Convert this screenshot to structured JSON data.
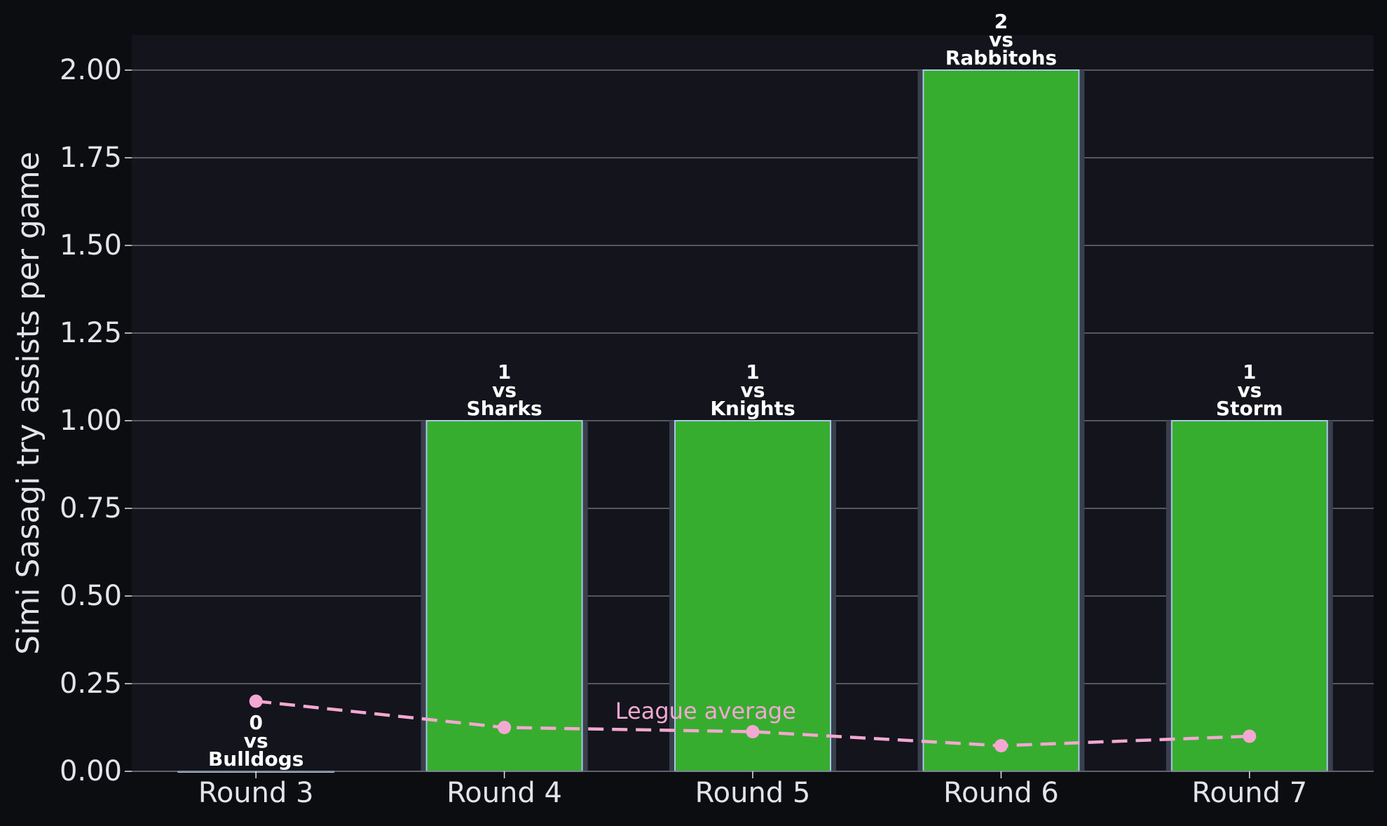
{
  "colors": {
    "page_background": "#0c0d11",
    "plot_background": "#13141c",
    "bar_fill": "#37ad2f",
    "bar_edge": "#a9c8e6",
    "bar_shadow": "#3a3f4e",
    "grid": "#6b6e78",
    "text": "#e3e4ea",
    "annotation_text": "#ffffff",
    "league_average": "#f3a8d2"
  },
  "chart_data": {
    "type": "bar",
    "title": "",
    "xlabel": "",
    "ylabel": "Simi Sasagi try assists per game",
    "categories": [
      "Round 3",
      "Round 4",
      "Round 5",
      "Round 6",
      "Round 7"
    ],
    "series": [
      {
        "values": [
          0,
          1,
          1,
          2,
          1
        ]
      },
      {
        "name": "League average",
        "type": "line",
        "style": "dashed-with-markers",
        "values": [
          0.2,
          0.125,
          0.113,
          0.073,
          0.1
        ]
      }
    ],
    "bar_labels": [
      [
        "0",
        "vs",
        "Bulldogs"
      ],
      [
        "1",
        "vs",
        "Sharks"
      ],
      [
        "1",
        "vs",
        "Knights"
      ],
      [
        "2",
        "vs",
        "Rabbitohs"
      ],
      [
        "1",
        "vs",
        "Storm"
      ]
    ],
    "yticks": [
      "0.00",
      "0.25",
      "0.50",
      "0.75",
      "1.00",
      "1.25",
      "1.50",
      "1.75",
      "2.00"
    ],
    "ylim": [
      0,
      2.1
    ],
    "grid": "horizontal",
    "legend": "none"
  }
}
